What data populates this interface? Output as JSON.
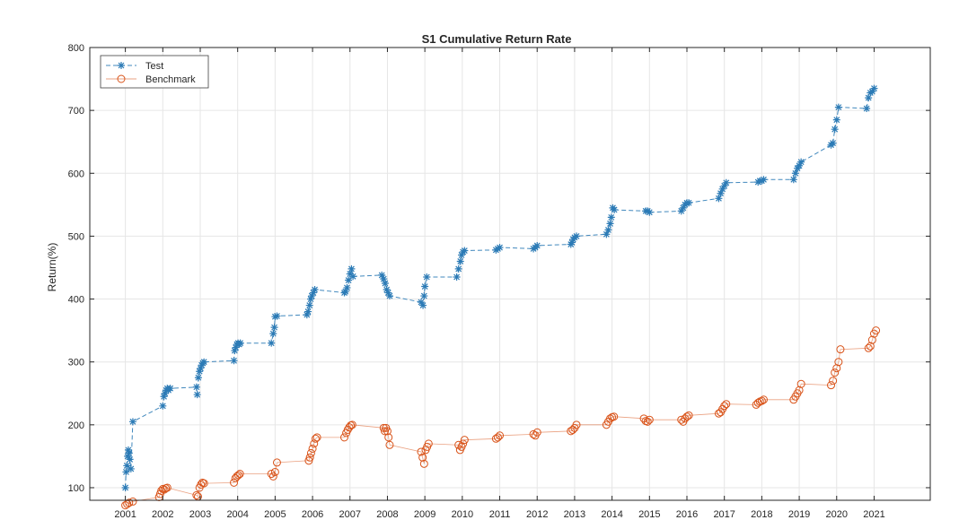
{
  "chart_data": {
    "type": "line",
    "title": "S1 Cumulative Return Rate",
    "xlabel": "",
    "ylabel": "Return(%)",
    "xlim": [
      2000.05,
      2022.5
    ],
    "ylim": [
      80,
      800
    ],
    "x_ticks": [
      2001,
      2002,
      2003,
      2004,
      2005,
      2006,
      2007,
      2008,
      2009,
      2010,
      2011,
      2012,
      2013,
      2014,
      2015,
      2016,
      2017,
      2018,
      2019,
      2020,
      2021
    ],
    "y_ticks": [
      100,
      200,
      300,
      400,
      500,
      600,
      700,
      800
    ],
    "grid": true,
    "legend_position": "top-left",
    "colors": {
      "test": "#2c7bb6",
      "benchmark": "#d95319",
      "axis": "#262626",
      "grid": "#e6e6e6"
    },
    "series": [
      {
        "name": "Test",
        "marker": "asterisk",
        "line": "dashed",
        "x": [
          2001.0,
          2001.02,
          2001.04,
          2001.06,
          2001.08,
          2001.1,
          2001.12,
          2001.15,
          2001.2,
          2002.0,
          2002.03,
          2002.06,
          2002.09,
          2002.12,
          2002.15,
          2002.2,
          2002.9,
          2002.92,
          2002.95,
          2002.98,
          2003.01,
          2003.04,
          2003.07,
          2003.1,
          2003.9,
          2003.92,
          2003.95,
          2003.98,
          2004.01,
          2004.04,
          2004.07,
          2004.9,
          2004.95,
          2004.98,
          2005.0,
          2005.05,
          2005.85,
          2005.88,
          2005.92,
          2005.95,
          2005.98,
          2006.02,
          2006.06,
          2006.85,
          2006.88,
          2006.92,
          2006.96,
          2007.0,
          2007.04,
          2007.08,
          2007.85,
          2007.9,
          2007.94,
          2007.98,
          2008.02,
          2008.06,
          2008.9,
          2008.95,
          2008.98,
          2009.0,
          2009.05,
          2009.85,
          2009.9,
          2009.95,
          2009.98,
          2010.02,
          2010.06,
          2010.9,
          2010.95,
          2011.0,
          2011.9,
          2011.95,
          2012.0,
          2012.9,
          2012.93,
          2012.96,
          2013.0,
          2013.05,
          2013.85,
          2013.9,
          2013.95,
          2013.98,
          2014.02,
          2014.06,
          2014.9,
          2014.95,
          2015.0,
          2015.85,
          2015.9,
          2015.95,
          2016.0,
          2016.05,
          2016.85,
          2016.9,
          2016.95,
          2017.0,
          2017.05,
          2017.9,
          2017.95,
          2018.0,
          2018.05,
          2018.85,
          2018.9,
          2018.95,
          2019.0,
          2019.05,
          2019.85,
          2019.9,
          2019.95,
          2020.0,
          2020.05,
          2020.8,
          2020.85,
          2020.9,
          2020.95,
          2021.0
        ],
        "y": [
          100,
          125,
          135,
          150,
          160,
          155,
          145,
          130,
          205,
          230,
          245,
          250,
          255,
          258,
          255,
          258,
          260,
          248,
          275,
          285,
          290,
          295,
          298,
          300,
          302,
          318,
          323,
          328,
          330,
          328,
          330,
          330,
          345,
          355,
          372,
          373,
          375,
          380,
          390,
          400,
          405,
          410,
          415,
          410,
          412,
          418,
          430,
          440,
          448,
          436,
          438,
          432,
          425,
          415,
          410,
          405,
          395,
          390,
          405,
          420,
          435,
          435,
          448,
          460,
          470,
          475,
          477,
          478,
          480,
          482,
          480,
          482,
          485,
          487,
          490,
          495,
          498,
          500,
          503,
          510,
          520,
          530,
          545,
          542,
          540,
          540,
          538,
          540,
          545,
          550,
          553,
          553,
          560,
          568,
          575,
          580,
          585,
          586,
          588,
          588,
          590,
          590,
          600,
          608,
          612,
          618,
          645,
          648,
          670,
          685,
          705,
          703,
          720,
          728,
          730,
          735
        ]
      },
      {
        "name": "Benchmark",
        "marker": "circle",
        "line": "solid",
        "x": [
          2001.0,
          2001.05,
          2001.1,
          2001.2,
          2001.9,
          2001.93,
          2001.96,
          2002.0,
          2002.04,
          2002.08,
          2002.12,
          2002.9,
          2002.94,
          2002.98,
          2003.02,
          2003.06,
          2003.1,
          2003.9,
          2003.94,
          2003.98,
          2004.02,
          2004.06,
          2004.9,
          2004.95,
          2005.0,
          2005.05,
          2005.9,
          2005.93,
          2005.96,
          2006.0,
          2006.04,
          2006.08,
          2006.12,
          2006.85,
          2006.9,
          2006.94,
          2006.98,
          2007.02,
          2007.06,
          2007.9,
          2007.93,
          2007.96,
          2008.0,
          2008.03,
          2008.06,
          2008.9,
          2008.94,
          2008.98,
          2009.02,
          2009.06,
          2009.1,
          2009.9,
          2009.94,
          2009.98,
          2010.02,
          2010.06,
          2010.9,
          2010.95,
          2011.0,
          2011.9,
          2011.95,
          2012.0,
          2012.9,
          2012.95,
          2013.0,
          2013.05,
          2013.85,
          2013.9,
          2013.95,
          2014.0,
          2014.05,
          2014.85,
          2014.9,
          2014.95,
          2015.0,
          2015.85,
          2015.9,
          2015.95,
          2016.0,
          2016.05,
          2016.85,
          2016.9,
          2016.95,
          2017.0,
          2017.05,
          2017.85,
          2017.9,
          2017.95,
          2018.0,
          2018.05,
          2018.85,
          2018.9,
          2018.95,
          2019.0,
          2019.05,
          2019.85,
          2019.9,
          2019.95,
          2020.0,
          2020.05,
          2020.1,
          2020.85,
          2020.9,
          2020.95,
          2021.0,
          2021.05
        ],
        "y": [
          72,
          74,
          76,
          78,
          85,
          90,
          95,
          98,
          97,
          99,
          100,
          88,
          86,
          100,
          105,
          108,
          107,
          108,
          115,
          118,
          120,
          122,
          122,
          118,
          125,
          140,
          143,
          148,
          155,
          162,
          170,
          178,
          180,
          180,
          187,
          192,
          196,
          199,
          200,
          195,
          190,
          195,
          190,
          180,
          168,
          157,
          148,
          138,
          160,
          165,
          170,
          168,
          160,
          165,
          170,
          176,
          178,
          180,
          183,
          185,
          183,
          188,
          190,
          192,
          195,
          200,
          200,
          205,
          210,
          212,
          213,
          210,
          206,
          205,
          208,
          208,
          205,
          210,
          213,
          215,
          218,
          220,
          225,
          230,
          233,
          232,
          235,
          237,
          238,
          240,
          240,
          245,
          250,
          255,
          265,
          263,
          270,
          283,
          290,
          300,
          320,
          322,
          325,
          335,
          345,
          350
        ]
      }
    ]
  }
}
